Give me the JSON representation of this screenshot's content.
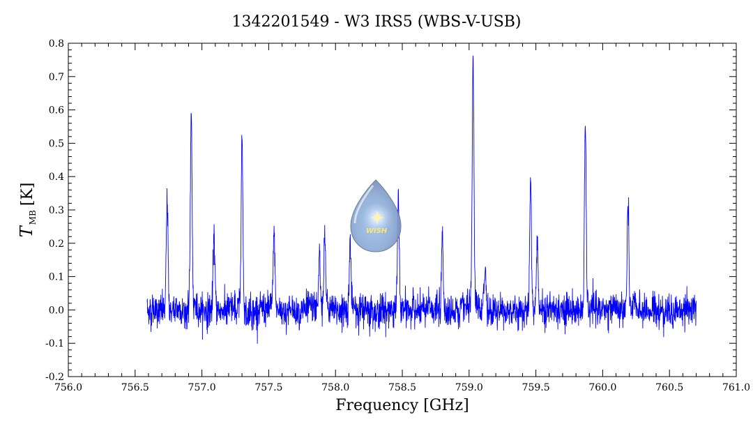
{
  "chart_data": {
    "type": "line",
    "title": "1342201549 - W3 IRS5 (WBS-V-USB)",
    "xlabel": "Frequency [GHz]",
    "ylabel": {
      "main": "T",
      "sub": "MB",
      "unit": "[K]"
    },
    "xlim": [
      756.0,
      761.0
    ],
    "ylim": [
      -0.2,
      0.8
    ],
    "xticks": [
      756.0,
      756.5,
      757.0,
      757.5,
      758.0,
      758.5,
      759.0,
      759.5,
      760.0,
      760.5,
      761.0
    ],
    "xtick_labels": [
      "756.0",
      "756.5",
      "757.0",
      "757.5",
      "758.0",
      "758.5",
      "759.0",
      "759.5",
      "760.0",
      "760.5",
      "761.0"
    ],
    "yticks": [
      -0.2,
      -0.1,
      0.0,
      0.1,
      0.2,
      0.3,
      0.4,
      0.5,
      0.6,
      0.7,
      0.8
    ],
    "ytick_labels": [
      "-0.2",
      "-0.1",
      "0.0",
      "0.1",
      "0.2",
      "0.3",
      "0.4",
      "0.5",
      "0.6",
      "0.7",
      "0.8"
    ],
    "grid": false,
    "series": [
      {
        "color": "#0000ff",
        "x_range": [
          756.59,
          760.7
        ],
        "noise_rms": 0.025,
        "peaks": [
          {
            "x": 756.74,
            "y": 0.32
          },
          {
            "x": 756.92,
            "y": 0.6
          },
          {
            "x": 757.09,
            "y": 0.22
          },
          {
            "x": 757.3,
            "y": 0.52
          },
          {
            "x": 757.54,
            "y": 0.23
          },
          {
            "x": 757.88,
            "y": 0.16
          },
          {
            "x": 757.92,
            "y": 0.22
          },
          {
            "x": 758.11,
            "y": 0.21
          },
          {
            "x": 758.47,
            "y": 0.33
          },
          {
            "x": 758.8,
            "y": 0.21
          },
          {
            "x": 759.03,
            "y": 0.74
          },
          {
            "x": 759.12,
            "y": 0.13
          },
          {
            "x": 759.46,
            "y": 0.4
          },
          {
            "x": 759.51,
            "y": 0.23
          },
          {
            "x": 759.87,
            "y": 0.55
          },
          {
            "x": 760.19,
            "y": 0.3
          }
        ]
      }
    ]
  },
  "logo": {
    "text": "WISH",
    "name": "wish-logo"
  }
}
